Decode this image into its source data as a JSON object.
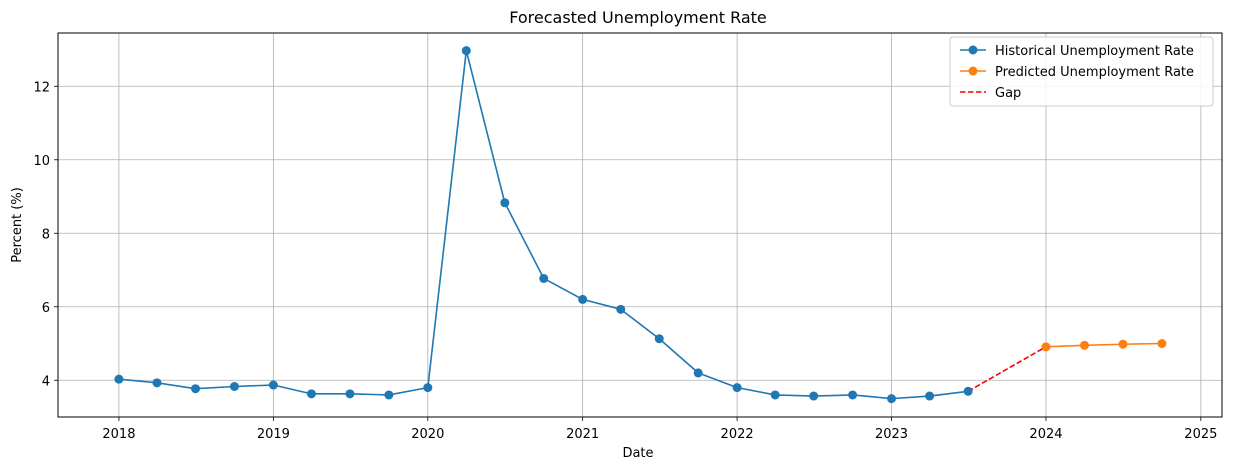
{
  "chart_data": {
    "type": "line",
    "title": "Forecasted Unemployment Rate",
    "xlabel": "Date",
    "ylabel": "Percent (%)",
    "x_axis_type": "date",
    "xlim": [
      "2017-08-10",
      "2025-02-20"
    ],
    "ylim": [
      3.0,
      13.45
    ],
    "x_ticks": [
      "2018",
      "2019",
      "2020",
      "2021",
      "2022",
      "2023",
      "2024",
      "2025"
    ],
    "y_ticks": [
      4,
      6,
      8,
      10,
      12
    ],
    "grid": true,
    "legend_position": "top-right",
    "series": [
      {
        "name": "Historical Unemployment Rate",
        "color": "#1f77b4",
        "style": "solid",
        "marker": "circle",
        "x": [
          "2018-01-01",
          "2018-04-01",
          "2018-07-01",
          "2018-10-01",
          "2019-01-01",
          "2019-04-01",
          "2019-07-01",
          "2019-10-01",
          "2020-01-01",
          "2020-04-01",
          "2020-07-01",
          "2020-10-01",
          "2021-01-01",
          "2021-04-01",
          "2021-07-01",
          "2021-10-01",
          "2022-01-01",
          "2022-04-01",
          "2022-07-01",
          "2022-10-01",
          "2023-01-01",
          "2023-04-01",
          "2023-07-01"
        ],
        "values": [
          4.03,
          3.93,
          3.77,
          3.83,
          3.87,
          3.63,
          3.63,
          3.6,
          3.8,
          12.97,
          8.83,
          6.77,
          6.2,
          5.93,
          5.13,
          4.2,
          3.8,
          3.6,
          3.57,
          3.6,
          3.5,
          3.57,
          3.7
        ]
      },
      {
        "name": "Predicted Unemployment Rate",
        "color": "#ff7f0e",
        "style": "solid",
        "marker": "circle",
        "x": [
          "2024-01-01",
          "2024-04-01",
          "2024-07-01",
          "2024-10-01"
        ],
        "values": [
          4.91,
          4.95,
          4.98,
          5.0
        ]
      },
      {
        "name": "Gap",
        "color": "#ff0000",
        "style": "dashed",
        "marker": "none",
        "x": [
          "2023-07-01",
          "2024-01-01"
        ],
        "values": [
          3.7,
          4.91
        ]
      }
    ]
  }
}
